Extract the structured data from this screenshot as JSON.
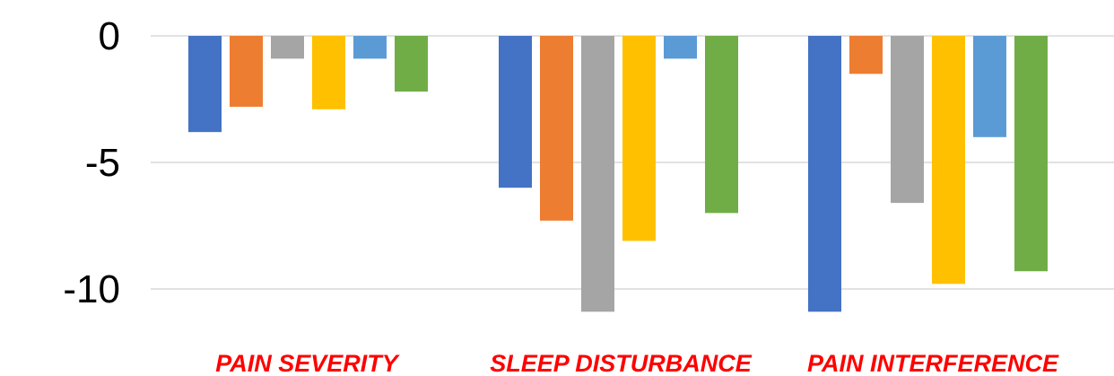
{
  "chart_data": {
    "type": "bar",
    "title": "",
    "xlabel": "",
    "ylabel": "",
    "categories": [
      "PAIN SEVERITY",
      "SLEEP DISTURBANCE",
      "PAIN INTERFERENCE"
    ],
    "y_ticks": [
      {
        "value": 0,
        "label": "0"
      },
      {
        "value": -5,
        "label": "-5"
      },
      {
        "value": -10,
        "label": "-10"
      }
    ],
    "ylim": [
      -10.9,
      0
    ],
    "grid": true,
    "legend": "none",
    "series": [
      {
        "color": "#4472C4",
        "values": [
          -3.8,
          -6.0,
          -10.9
        ]
      },
      {
        "color": "#ED7D31",
        "values": [
          -2.8,
          -7.3,
          -1.5
        ]
      },
      {
        "color": "#A5A5A5",
        "values": [
          -0.9,
          -10.9,
          -6.6
        ]
      },
      {
        "color": "#FFC000",
        "values": [
          -2.9,
          -8.1,
          -9.8
        ]
      },
      {
        "color": "#5B9BD5",
        "values": [
          -0.9,
          -0.9,
          -4.0
        ]
      },
      {
        "color": "#70AD47",
        "values": [
          -2.2,
          -7.0,
          -9.3
        ]
      }
    ],
    "category_label_color": "#FF0000",
    "gridline_color": "#D9D9D9"
  }
}
